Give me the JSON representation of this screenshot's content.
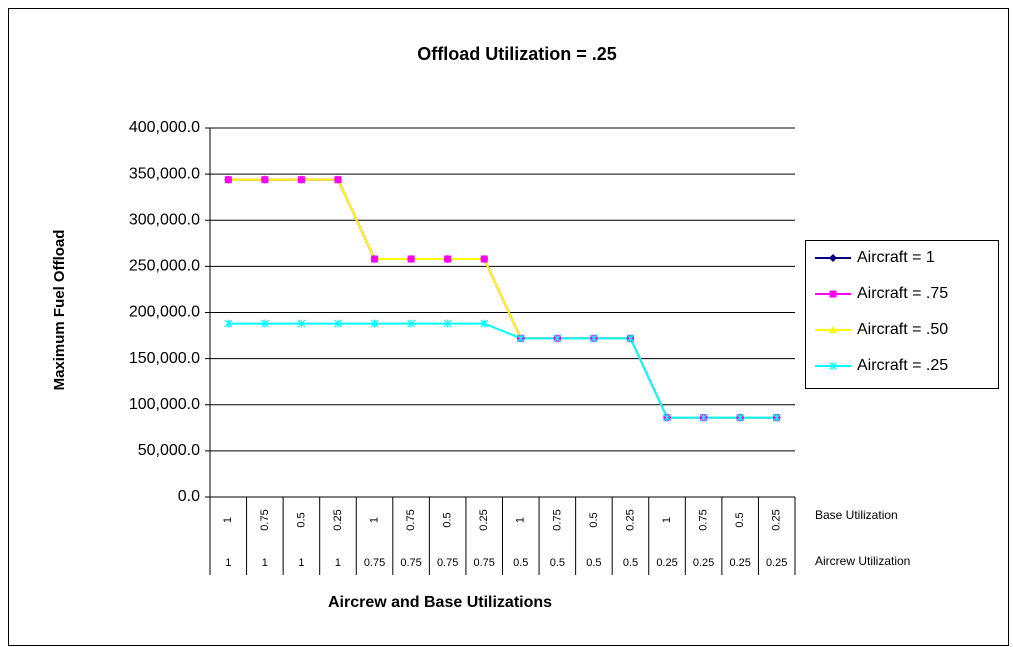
{
  "chart_data": {
    "type": "line",
    "title": "Offload Utilization = .25",
    "y_label": "Maximum Fuel Offload",
    "x_label": "Aircrew and Base Utilizations",
    "category_label": "Base Utilization",
    "group_label": "Aircrew Utilization",
    "categories": [
      "1",
      "0.75",
      "0.5",
      "0.25",
      "1",
      "0.75",
      "0.5",
      "0.25",
      "1",
      "0.75",
      "0.5",
      "0.25",
      "1",
      "0.75",
      "0.5",
      "0.25"
    ],
    "groups": [
      "1",
      "1",
      "1",
      "1",
      "0.75",
      "0.75",
      "0.75",
      "0.75",
      "0.5",
      "0.5",
      "0.5",
      "0.5",
      "0.25",
      "0.25",
      "0.25",
      "0.25"
    ],
    "ylim": [
      0,
      400000
    ],
    "yticks": [
      {
        "value": 0,
        "label": "0.0"
      },
      {
        "value": 50000,
        "label": "50,000.0"
      },
      {
        "value": 100000,
        "label": "100,000.0"
      },
      {
        "value": 150000,
        "label": "150,000.0"
      },
      {
        "value": 200000,
        "label": "200,000.0"
      },
      {
        "value": 250000,
        "label": "250,000.0"
      },
      {
        "value": 300000,
        "label": "300,000.0"
      },
      {
        "value": 350000,
        "label": "350,000.0"
      },
      {
        "value": 400000,
        "label": "400,000.0"
      }
    ],
    "grid": true,
    "legend": "right",
    "series": [
      {
        "name": "Aircraft = 1",
        "color": "#000080",
        "marker": "diamond",
        "values": [
          344000,
          344000,
          344000,
          344000,
          258000,
          258000,
          258000,
          258000,
          172000,
          172000,
          172000,
          172000,
          86000,
          86000,
          86000,
          86000
        ]
      },
      {
        "name": "Aircraft = .75",
        "color": "#ff00ff",
        "marker": "square",
        "values": [
          344000,
          344000,
          344000,
          344000,
          258000,
          258000,
          258000,
          258000,
          172000,
          172000,
          172000,
          172000,
          86000,
          86000,
          86000,
          86000
        ]
      },
      {
        "name": "Aircraft = .50",
        "color": "#ffff00",
        "marker": "triangle",
        "values": [
          344000,
          344000,
          344000,
          344000,
          258000,
          258000,
          258000,
          258000,
          172000,
          172000,
          172000,
          172000,
          86000,
          86000,
          86000,
          86000
        ]
      },
      {
        "name": "Aircraft = .25",
        "color": "#00ffff",
        "marker": "x",
        "values": [
          188000,
          188000,
          188000,
          188000,
          188000,
          188000,
          188000,
          188000,
          172000,
          172000,
          172000,
          172000,
          86000,
          86000,
          86000,
          86000
        ]
      }
    ]
  }
}
